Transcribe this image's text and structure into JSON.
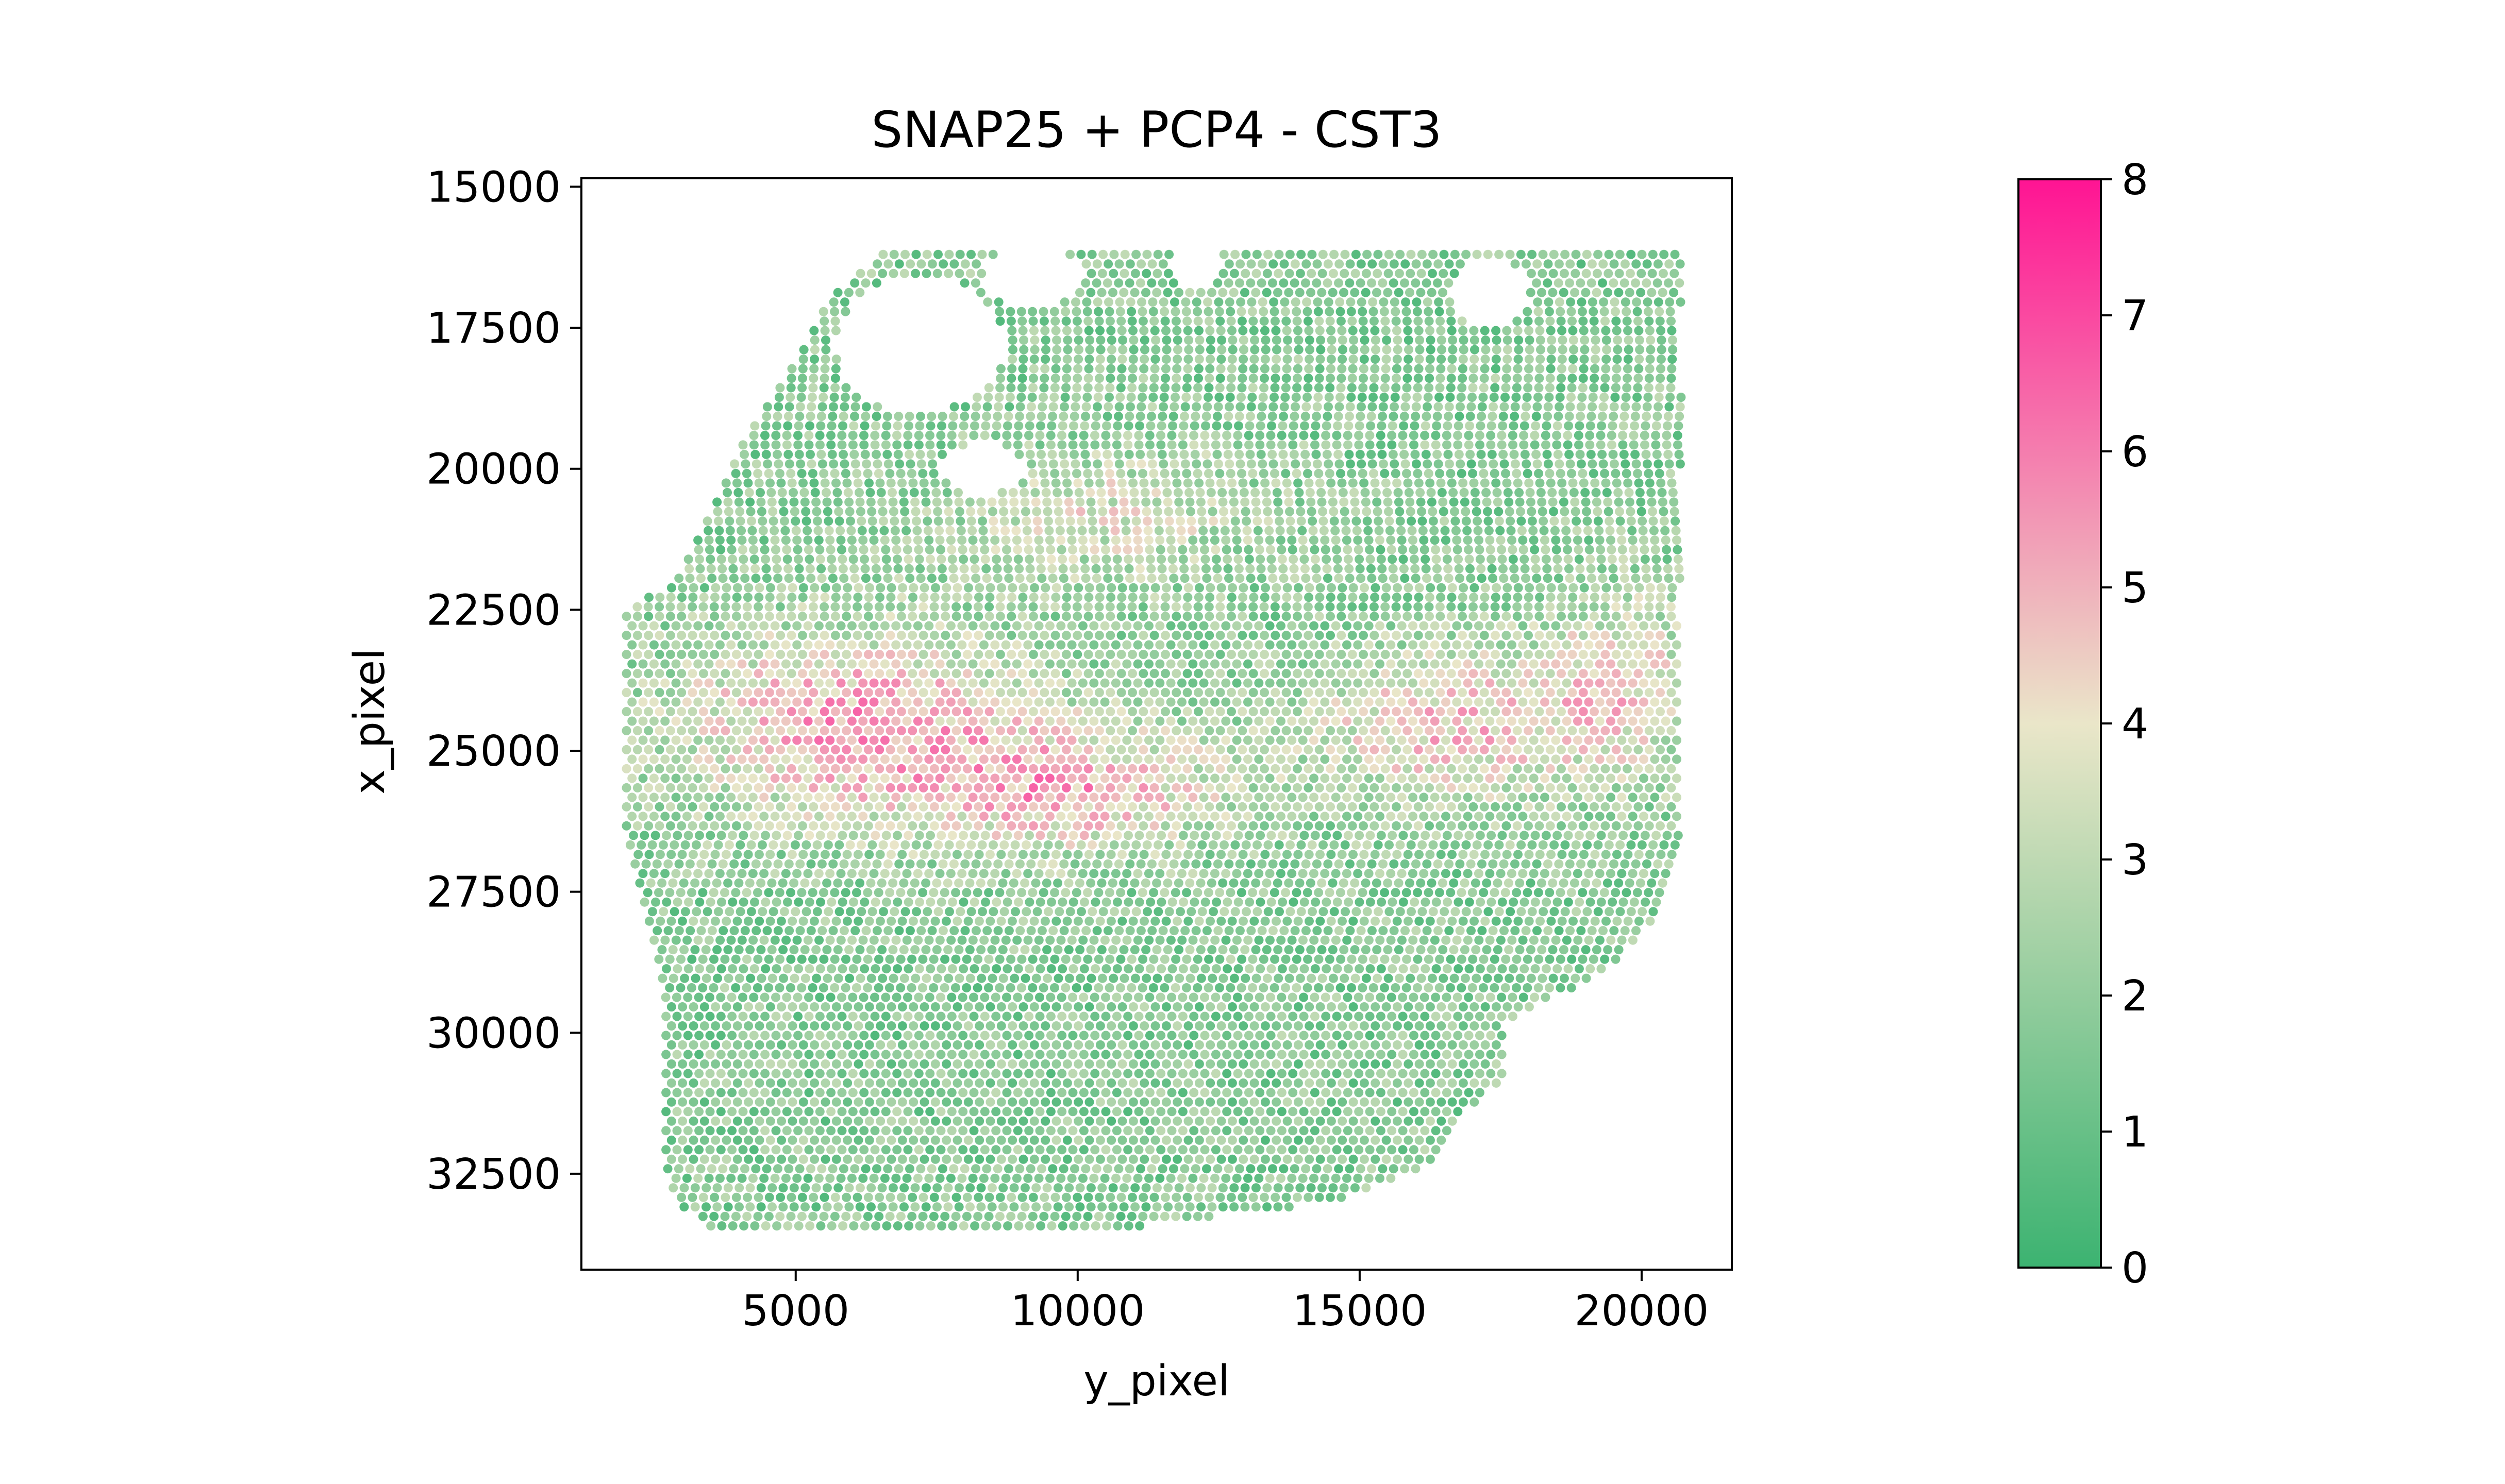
{
  "chart_data": {
    "type": "scatter",
    "title": "SNAP25 + PCP4 - CST3",
    "xlabel": "y_pixel",
    "ylabel": "x_pixel",
    "xlim": [
      1200,
      21600
    ],
    "ylim": [
      34200,
      14850
    ],
    "y_inverted": true,
    "x_ticks": [
      5000,
      10000,
      15000,
      20000
    ],
    "x_tick_labels": [
      "5000",
      "10000",
      "15000",
      "20000"
    ],
    "y_ticks": [
      15000,
      17500,
      20000,
      22500,
      25000,
      27500,
      30000,
      32500
    ],
    "y_tick_labels": [
      "15000",
      "17500",
      "20000",
      "22500",
      "25000",
      "27500",
      "30000",
      "32500"
    ],
    "legend": "none",
    "colorbar": {
      "min": 0,
      "max": 8,
      "ticks": [
        0,
        1,
        2,
        3,
        4,
        5,
        6,
        7,
        8
      ],
      "tick_labels": [
        "0",
        "1",
        "2",
        "3",
        "4",
        "5",
        "6",
        "7",
        "8"
      ],
      "colors": [
        "#3cb371",
        "#eae6c9",
        "#ff1493"
      ],
      "color_stops": [
        0,
        4,
        8
      ]
    },
    "grid": false,
    "tissue": {
      "outline_y": [
        [
          16200,
          6550,
          20700
        ],
        [
          17000,
          5600,
          20700
        ],
        [
          17800,
          5200,
          20700
        ],
        [
          18600,
          4700,
          20700
        ],
        [
          19500,
          4100,
          20700
        ],
        [
          20400,
          3700,
          20700
        ],
        [
          21200,
          3300,
          20700
        ],
        [
          22000,
          2900,
          20700
        ],
        [
          22500,
          2000,
          20700
        ],
        [
          26400,
          2000,
          20700
        ],
        [
          27200,
          2200,
          20600
        ],
        [
          28000,
          2400,
          20200
        ],
        [
          28800,
          2600,
          19500
        ],
        [
          29400,
          2700,
          18400
        ],
        [
          29800,
          2700,
          17600
        ],
        [
          30800,
          2700,
          17600
        ],
        [
          31500,
          2700,
          16800
        ],
        [
          32300,
          2700,
          16400
        ],
        [
          33000,
          2900,
          14500
        ],
        [
          33500,
          3600,
          10500
        ]
      ],
      "holes": [
        {
          "x": 7200,
          "y": 17800,
          "rx": 1500,
          "ry": 1200
        },
        {
          "x": 9200,
          "y": 16600,
          "rx": 900,
          "ry": 550
        },
        {
          "x": 8300,
          "y": 20000,
          "rx": 750,
          "ry": 450
        },
        {
          "x": 12100,
          "y": 16400,
          "rx": 450,
          "ry": 400
        },
        {
          "x": 17300,
          "y": 16900,
          "rx": 700,
          "ry": 600
        }
      ],
      "hot_zones": [
        {
          "x": 6000,
          "y": 24500,
          "rx": 3200,
          "ry": 1700,
          "amp": 3.4
        },
        {
          "x": 10000,
          "y": 25700,
          "rx": 2800,
          "ry": 1100,
          "amp": 3.0
        },
        {
          "x": 16600,
          "y": 24500,
          "rx": 2500,
          "ry": 1400,
          "amp": 2.8
        },
        {
          "x": 19700,
          "y": 23800,
          "rx": 1400,
          "ry": 1700,
          "amp": 2.2
        },
        {
          "x": 10500,
          "y": 20800,
          "rx": 2800,
          "ry": 1200,
          "amp": 1.8
        }
      ],
      "base_value": 1.8,
      "spot_spacing": 195
    }
  }
}
